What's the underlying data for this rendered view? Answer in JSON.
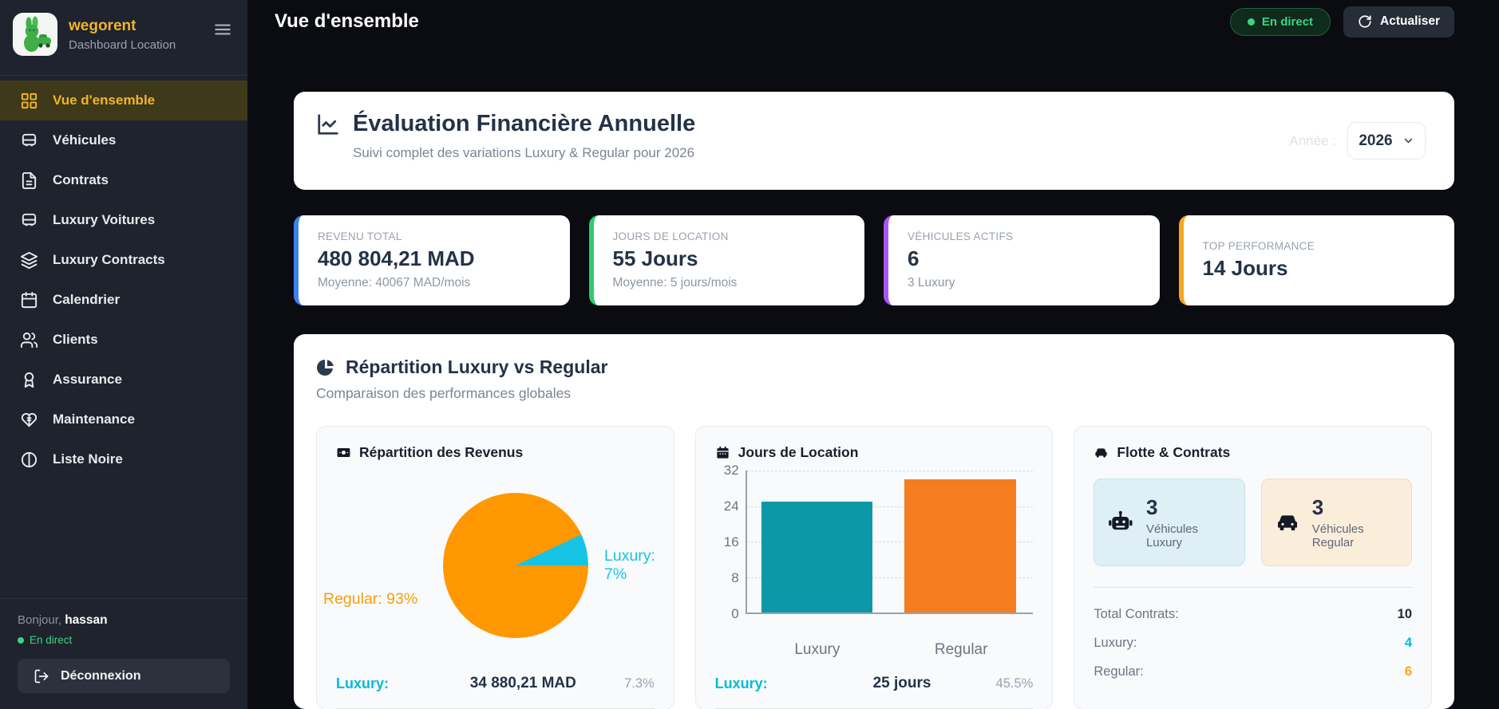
{
  "colors": {
    "brand_yellow": "#f0b42b",
    "live_green": "#3ad583",
    "luxury_cyan": "#00bcd4",
    "regular_orange": "#f5a623",
    "navy": "#243247"
  },
  "sidebar": {
    "brand": {
      "name": "wegorent",
      "subtitle": "Dashboard Location"
    },
    "items": [
      {
        "label": "Vue d'ensemble",
        "icon": "grid-icon",
        "active": true
      },
      {
        "label": "Véhicules",
        "icon": "vehicle-icon",
        "active": false
      },
      {
        "label": "Contrats",
        "icon": "document-icon",
        "active": false
      },
      {
        "label": "Luxury Voitures",
        "icon": "car-icon",
        "active": false
      },
      {
        "label": "Luxury Contracts",
        "icon": "layers-icon",
        "active": false
      },
      {
        "label": "Calendrier",
        "icon": "calendar-icon",
        "active": false
      },
      {
        "label": "Clients",
        "icon": "users-icon",
        "active": false
      },
      {
        "label": "Assurance",
        "icon": "award-icon",
        "active": false
      },
      {
        "label": "Maintenance",
        "icon": "heart-stitch-icon",
        "active": false
      },
      {
        "label": "Liste Noire",
        "icon": "ban-icon",
        "active": false
      }
    ],
    "footer": {
      "greeting": "Bonjour,",
      "username": "hassan",
      "status": "En direct",
      "logout_label": "Déconnexion"
    }
  },
  "header": {
    "title": "Vue d'ensemble",
    "live_badge": "En direct",
    "refresh_label": "Actualiser"
  },
  "evaluation": {
    "title": "Évaluation Financière Annuelle",
    "subtitle": "Suivi complet des variations Luxury & Regular pour 2026",
    "year_label": "Année :",
    "year_value": "2026"
  },
  "stats": [
    {
      "label": "REVENU TOTAL",
      "value": "480 804,21 MAD",
      "sub": "Moyenne: 40067 MAD/mois",
      "accent": "#3b82f6"
    },
    {
      "label": "JOURS DE LOCATION",
      "value": "55 Jours",
      "sub": "Moyenne: 5 jours/mois",
      "accent": "#2dcc70"
    },
    {
      "label": "VÉHICULES ACTIFS",
      "value": "6",
      "sub": "3 Luxury",
      "accent": "#a855f7"
    },
    {
      "label": "TOP PERFORMANCE",
      "value": "14 Jours",
      "sub": "",
      "accent": "#f5a623"
    }
  ],
  "repartition": {
    "title": "Répartition Luxury vs Regular",
    "subtitle": "Comparaison des performances globales",
    "revenue_card": {
      "title": "Répartition des Revenus",
      "bottom_label": "Luxury:",
      "bottom_value": "34 880,21 MAD",
      "bottom_pct": "7.3%"
    },
    "days_card": {
      "title": "Jours de Location",
      "bottom_label": "Luxury:",
      "bottom_value": "25 jours",
      "bottom_pct": "45.5%"
    },
    "fleet_card": {
      "title": "Flotte & Contrats",
      "tiles": [
        {
          "value": "3",
          "label": "Véhicules Luxury"
        },
        {
          "value": "3",
          "label": "Véhicules Regular"
        }
      ],
      "rows": [
        {
          "label": "Total Contrats:",
          "value": "10"
        },
        {
          "label": "Luxury:",
          "value": "4"
        },
        {
          "label": "Regular:",
          "value": "6"
        }
      ]
    }
  },
  "chart_data": [
    {
      "type": "pie",
      "title": "Répartition des Revenus",
      "labels": [
        "Luxury",
        "Regular"
      ],
      "values": [
        7,
        93
      ],
      "colors": [
        "#17c3e3",
        "#ff9800"
      ],
      "annotations": [
        "Luxury: 7%",
        "Regular: 93%"
      ],
      "legend_position": "none"
    },
    {
      "type": "bar",
      "title": "Jours de Location",
      "categories": [
        "Luxury",
        "Regular"
      ],
      "values": [
        25,
        30
      ],
      "colors": [
        "#0d98a8",
        "#f57d1f"
      ],
      "ylim": [
        0,
        32
      ],
      "yticks": [
        "32",
        "24",
        "16",
        "8",
        "0"
      ],
      "grid": true
    }
  ]
}
